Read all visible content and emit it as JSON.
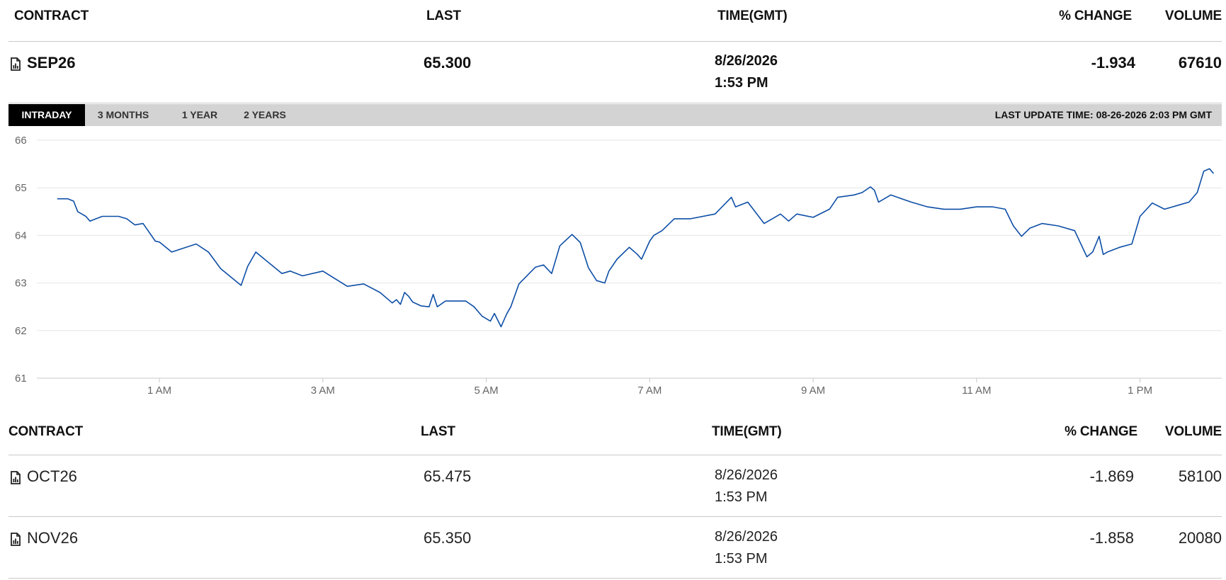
{
  "headers": {
    "contract": "CONTRACT",
    "last": "LAST",
    "time": "TIME(GMT)",
    "change": "% CHANGE",
    "volume": "VOLUME"
  },
  "main_contract": {
    "name": "SEP26",
    "last": "65.300",
    "date": "8/26/2026",
    "time": "1:53 PM",
    "change": "-1.934",
    "volume": "67610",
    "icon": "document-chart-icon"
  },
  "tabs": [
    {
      "label": "INTRADAY",
      "active": true
    },
    {
      "label": "3 MONTHS",
      "active": false
    },
    {
      "label": "1 YEAR",
      "active": false
    },
    {
      "label": "2 YEARS",
      "active": false
    }
  ],
  "last_update": "LAST UPDATE TIME: 08-26-2026 2:03 PM GMT",
  "rows": [
    {
      "name": "OCT26",
      "last": "65.475",
      "date": "8/26/2026",
      "time": "1:53 PM",
      "change": "-1.869",
      "volume": "58100",
      "icon": "document-chart-icon"
    },
    {
      "name": "NOV26",
      "last": "65.350",
      "date": "8/26/2026",
      "time": "1:53 PM",
      "change": "-1.858",
      "volume": "20080",
      "icon": "document-chart-icon"
    }
  ],
  "colors": {
    "line": "#0d4ea6",
    "tab_active_bg": "#000000",
    "tab_bar_bg": "#d3d3d3",
    "grid": "#e6e6e6"
  },
  "chart_data": {
    "type": "line",
    "grid": true,
    "ylim": [
      61,
      66
    ],
    "y_ticks": [
      "61",
      "62",
      "63",
      "64",
      "65",
      "66"
    ],
    "xlim": [
      -0.5,
      14.0
    ],
    "x_ticks": [
      {
        "label": "1 AM",
        "value": 1
      },
      {
        "label": "3 AM",
        "value": 3
      },
      {
        "label": "5 AM",
        "value": 5
      },
      {
        "label": "7 AM",
        "value": 7
      },
      {
        "label": "9 AM",
        "value": 9
      },
      {
        "label": "11 AM",
        "value": 11
      },
      {
        "label": "1 PM",
        "value": 13
      }
    ],
    "series": [
      {
        "x": [
          -0.25,
          -0.12,
          -0.05,
          0.0,
          0.05,
          0.1,
          0.15,
          0.3,
          0.5,
          0.6,
          0.7,
          0.8,
          0.95,
          1.0,
          1.15,
          1.45,
          1.6,
          1.75,
          2.0,
          2.08,
          2.18,
          2.25,
          2.5,
          2.6,
          2.75,
          3.0,
          3.3,
          3.5,
          3.7,
          3.85,
          3.9,
          3.95,
          4.0,
          4.05,
          4.1,
          4.2,
          4.3,
          4.35,
          4.4,
          4.5,
          4.75,
          4.85,
          4.95,
          5.05,
          5.1,
          5.18,
          5.25,
          5.3,
          5.4,
          5.6,
          5.7,
          5.8,
          5.9,
          6.05,
          6.15,
          6.25,
          6.35,
          6.45,
          6.5,
          6.6,
          6.75,
          6.85,
          6.9,
          7.0,
          7.05,
          7.15,
          7.3,
          7.5,
          7.8,
          8.0,
          8.05,
          8.2,
          8.4,
          8.5,
          8.6,
          8.7,
          8.8,
          9.0,
          9.2,
          9.3,
          9.5,
          9.6,
          9.7,
          9.75,
          9.8,
          9.95,
          10.2,
          10.4,
          10.6,
          10.8,
          11.0,
          11.2,
          11.35,
          11.45,
          11.55,
          11.65,
          11.8,
          12.0,
          12.2,
          12.35,
          12.42,
          12.5,
          12.55,
          12.6,
          12.75,
          12.9,
          13.0,
          13.15,
          13.3,
          13.5,
          13.6,
          13.7,
          13.78,
          13.85,
          13.9
        ],
        "y": [
          64.77,
          64.77,
          64.72,
          64.5,
          64.45,
          64.4,
          64.3,
          64.4,
          64.4,
          64.35,
          64.22,
          64.25,
          63.88,
          63.86,
          63.65,
          63.82,
          63.65,
          63.3,
          62.95,
          63.35,
          63.65,
          63.55,
          63.2,
          63.25,
          63.15,
          63.25,
          62.93,
          62.98,
          62.8,
          62.58,
          62.65,
          62.55,
          62.8,
          62.72,
          62.6,
          62.52,
          62.5,
          62.76,
          62.5,
          62.62,
          62.62,
          62.5,
          62.3,
          62.2,
          62.36,
          62.08,
          62.35,
          62.5,
          62.98,
          63.33,
          63.38,
          63.2,
          63.78,
          64.02,
          63.85,
          63.32,
          63.05,
          63.0,
          63.25,
          63.5,
          63.75,
          63.6,
          63.5,
          63.88,
          64.0,
          64.1,
          64.35,
          64.35,
          64.45,
          64.8,
          64.6,
          64.7,
          64.25,
          64.35,
          64.45,
          64.3,
          64.45,
          64.38,
          64.55,
          64.8,
          64.85,
          64.9,
          65.02,
          64.95,
          64.7,
          64.85,
          64.7,
          64.6,
          64.55,
          64.55,
          64.6,
          64.6,
          64.55,
          64.2,
          63.98,
          64.15,
          64.25,
          64.2,
          64.1,
          63.55,
          63.65,
          63.98,
          63.6,
          63.65,
          63.75,
          63.82,
          64.4,
          64.68,
          64.55,
          64.65,
          64.7,
          64.9,
          65.35,
          65.4,
          65.3
        ]
      }
    ]
  }
}
